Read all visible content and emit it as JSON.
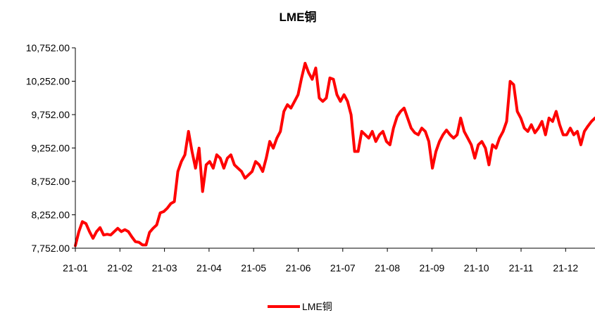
{
  "chart_data": {
    "type": "line",
    "title": "LME铜",
    "xlabel": "",
    "ylabel": "",
    "ylim": [
      7752.0,
      10752.0
    ],
    "y_ticks": [
      "7,752.00",
      "8,252.00",
      "8,752.00",
      "9,252.00",
      "9,752.00",
      "10,252.00",
      "10,752.00"
    ],
    "x_ticks": [
      "21-01",
      "21-02",
      "21-03",
      "21-04",
      "21-05",
      "21-06",
      "21-07",
      "21-08",
      "21-09",
      "21-10",
      "21-11",
      "21-12"
    ],
    "legend_position": "bottom-center",
    "series": [
      {
        "name": "LME铜",
        "color": "#ff0000",
        "points": [
          [
            0.0,
            7790
          ],
          [
            0.1,
            8000
          ],
          [
            0.2,
            8150
          ],
          [
            0.3,
            8120
          ],
          [
            0.4,
            8000
          ],
          [
            0.5,
            7900
          ],
          [
            0.6,
            8000
          ],
          [
            0.7,
            8060
          ],
          [
            0.8,
            7950
          ],
          [
            0.9,
            7960
          ],
          [
            1.0,
            7950
          ],
          [
            1.1,
            8000
          ],
          [
            1.2,
            8050
          ],
          [
            1.3,
            8000
          ],
          [
            1.4,
            8030
          ],
          [
            1.5,
            8000
          ],
          [
            1.6,
            7920
          ],
          [
            1.7,
            7850
          ],
          [
            1.8,
            7840
          ],
          [
            1.9,
            7800
          ],
          [
            2.0,
            7800
          ],
          [
            2.1,
            7990
          ],
          [
            2.2,
            8050
          ],
          [
            2.3,
            8100
          ],
          [
            2.4,
            8280
          ],
          [
            2.5,
            8300
          ],
          [
            2.6,
            8350
          ],
          [
            2.7,
            8420
          ],
          [
            2.8,
            8450
          ],
          [
            2.9,
            8900
          ],
          [
            3.0,
            9050
          ],
          [
            3.1,
            9150
          ],
          [
            3.2,
            9500
          ],
          [
            3.3,
            9200
          ],
          [
            3.4,
            8950
          ],
          [
            3.5,
            9250
          ],
          [
            3.6,
            8600
          ],
          [
            3.7,
            9000
          ],
          [
            3.8,
            9050
          ],
          [
            3.9,
            8950
          ],
          [
            4.0,
            9150
          ],
          [
            4.1,
            9100
          ],
          [
            4.2,
            8950
          ],
          [
            4.3,
            9100
          ],
          [
            4.4,
            9150
          ],
          [
            4.5,
            9000
          ],
          [
            4.6,
            8950
          ],
          [
            4.7,
            8900
          ],
          [
            4.8,
            8800
          ],
          [
            4.9,
            8850
          ],
          [
            5.0,
            8900
          ],
          [
            5.1,
            9050
          ],
          [
            5.2,
            9000
          ],
          [
            5.3,
            8900
          ],
          [
            5.4,
            9100
          ],
          [
            5.5,
            9350
          ],
          [
            5.6,
            9250
          ],
          [
            5.7,
            9400
          ],
          [
            5.8,
            9500
          ],
          [
            5.9,
            9800
          ],
          [
            6.0,
            9900
          ],
          [
            6.1,
            9850
          ],
          [
            6.2,
            9950
          ],
          [
            6.3,
            10050
          ],
          [
            6.4,
            10300
          ],
          [
            6.5,
            10520
          ],
          [
            6.6,
            10380
          ],
          [
            6.7,
            10280
          ],
          [
            6.8,
            10450
          ],
          [
            6.9,
            10000
          ],
          [
            7.0,
            9950
          ],
          [
            7.1,
            10000
          ],
          [
            7.2,
            10300
          ],
          [
            7.3,
            10280
          ],
          [
            7.4,
            10050
          ],
          [
            7.5,
            9950
          ],
          [
            7.6,
            10050
          ],
          [
            7.7,
            9950
          ],
          [
            7.8,
            9750
          ],
          [
            7.9,
            9200
          ],
          [
            8.0,
            9200
          ],
          [
            8.1,
            9500
          ],
          [
            8.2,
            9450
          ],
          [
            8.3,
            9400
          ],
          [
            8.4,
            9500
          ],
          [
            8.5,
            9350
          ],
          [
            8.6,
            9450
          ],
          [
            8.7,
            9500
          ],
          [
            8.8,
            9350
          ],
          [
            8.9,
            9300
          ],
          [
            9.0,
            9550
          ],
          [
            9.1,
            9720
          ],
          [
            9.2,
            9800
          ],
          [
            9.3,
            9850
          ],
          [
            9.4,
            9700
          ],
          [
            9.5,
            9550
          ],
          [
            9.6,
            9480
          ],
          [
            9.7,
            9450
          ],
          [
            9.8,
            9550
          ],
          [
            9.9,
            9500
          ],
          [
            10.0,
            9350
          ],
          [
            10.1,
            8950
          ],
          [
            10.2,
            9200
          ],
          [
            10.3,
            9350
          ],
          [
            10.4,
            9450
          ],
          [
            10.5,
            9520
          ],
          [
            10.6,
            9450
          ],
          [
            10.7,
            9400
          ],
          [
            10.8,
            9450
          ],
          [
            10.9,
            9700
          ],
          [
            11.0,
            9500
          ],
          [
            11.1,
            9400
          ],
          [
            11.2,
            9300
          ],
          [
            11.3,
            9100
          ],
          [
            11.4,
            9300
          ],
          [
            11.5,
            9350
          ],
          [
            11.6,
            9250
          ],
          [
            11.7,
            9000
          ],
          [
            11.8,
            9300
          ],
          [
            11.9,
            9250
          ],
          [
            12.0,
            9400
          ],
          [
            12.1,
            9500
          ],
          [
            12.2,
            9650
          ],
          [
            12.3,
            10250
          ],
          [
            12.4,
            10200
          ],
          [
            12.5,
            9800
          ],
          [
            12.6,
            9700
          ],
          [
            12.7,
            9550
          ],
          [
            12.8,
            9500
          ],
          [
            12.9,
            9600
          ],
          [
            13.0,
            9480
          ],
          [
            13.1,
            9550
          ],
          [
            13.2,
            9650
          ],
          [
            13.3,
            9450
          ],
          [
            13.4,
            9700
          ],
          [
            13.5,
            9650
          ],
          [
            13.6,
            9800
          ],
          [
            13.7,
            9600
          ],
          [
            13.8,
            9450
          ],
          [
            13.9,
            9450
          ],
          [
            14.0,
            9550
          ],
          [
            14.1,
            9450
          ],
          [
            14.2,
            9500
          ],
          [
            14.3,
            9300
          ],
          [
            14.4,
            9500
          ],
          [
            14.5,
            9580
          ],
          [
            14.6,
            9650
          ],
          [
            14.7,
            9700
          ]
        ]
      }
    ]
  }
}
